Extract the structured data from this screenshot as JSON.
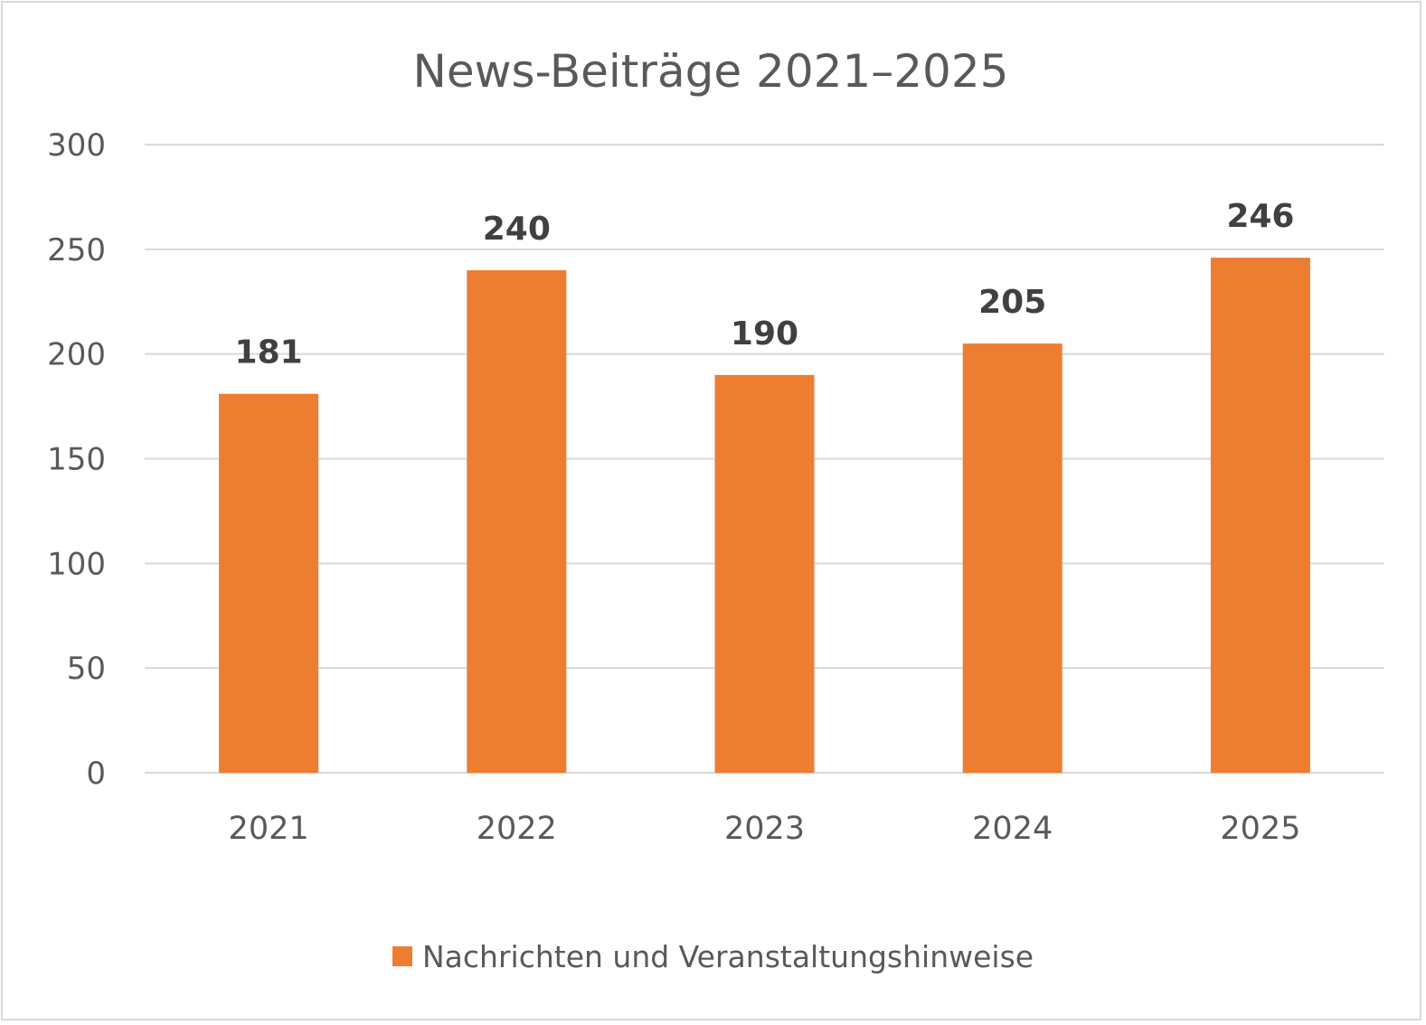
{
  "chart_data": {
    "type": "bar",
    "title": "News-Beiträge 2021–2025",
    "xlabel": "",
    "ylabel": "",
    "categories": [
      "2021",
      "2022",
      "2023",
      "2024",
      "2025"
    ],
    "series": [
      {
        "name": "Nachrichten und Veranstaltungshinweise",
        "values": [
          181,
          240,
          190,
          205,
          246
        ],
        "color": "#ED7D31"
      }
    ],
    "ylim": [
      0,
      300
    ],
    "yticks": [
      0,
      50,
      100,
      150,
      200,
      250,
      300
    ],
    "ytick_labels": [
      "0",
      "50",
      "100",
      "150",
      "200",
      "250",
      "300"
    ],
    "data_labels": [
      "181",
      "240",
      "190",
      "205",
      "246"
    ],
    "grid": true,
    "legend_position": "bottom"
  }
}
